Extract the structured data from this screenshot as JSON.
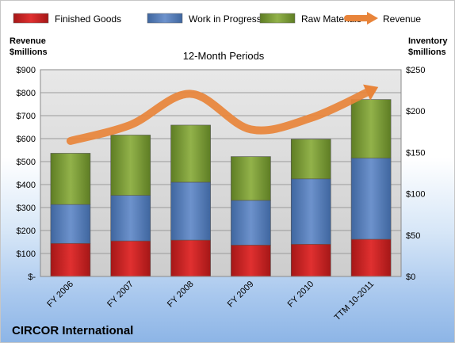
{
  "chart_data": {
    "type": "bar",
    "subtitle": "12-Month Periods",
    "left_axis_title": [
      "Revenue",
      "$millions"
    ],
    "right_axis_title": [
      "Inventory",
      "$millions"
    ],
    "company": "CIRCOR International",
    "categories": [
      "FY 2006",
      "FY 2007",
      "FY 2008",
      "FY 2009",
      "FY 2010",
      "TTM 10-2011"
    ],
    "left_ticks": [
      "$-",
      "$100",
      "$200",
      "$300",
      "$400",
      "$500",
      "$600",
      "$700",
      "$800",
      "$900"
    ],
    "right_ticks": [
      "$0",
      "$50",
      "$100",
      "$150",
      "$200",
      "$250"
    ],
    "ylim_left": [
      0,
      900
    ],
    "ylim_right": [
      0,
      250
    ],
    "stacked_series": [
      {
        "name": "Finished Goods",
        "color": "#cc2222",
        "values": [
          40,
          43,
          44,
          38,
          39,
          45
        ]
      },
      {
        "name": "Work in Progress",
        "color": "#5b80b9",
        "values": [
          47,
          55,
          70,
          54,
          79,
          98
        ]
      },
      {
        "name": "Raw Materials",
        "color": "#7f9f3a",
        "values": [
          62,
          73,
          69,
          53,
          48,
          71
        ]
      }
    ],
    "line_series": {
      "name": "Revenue",
      "axis": "left",
      "color": "#e8843a",
      "values": [
        590,
        660,
        795,
        640,
        690,
        810
      ]
    },
    "grid": true,
    "legend": "top"
  }
}
